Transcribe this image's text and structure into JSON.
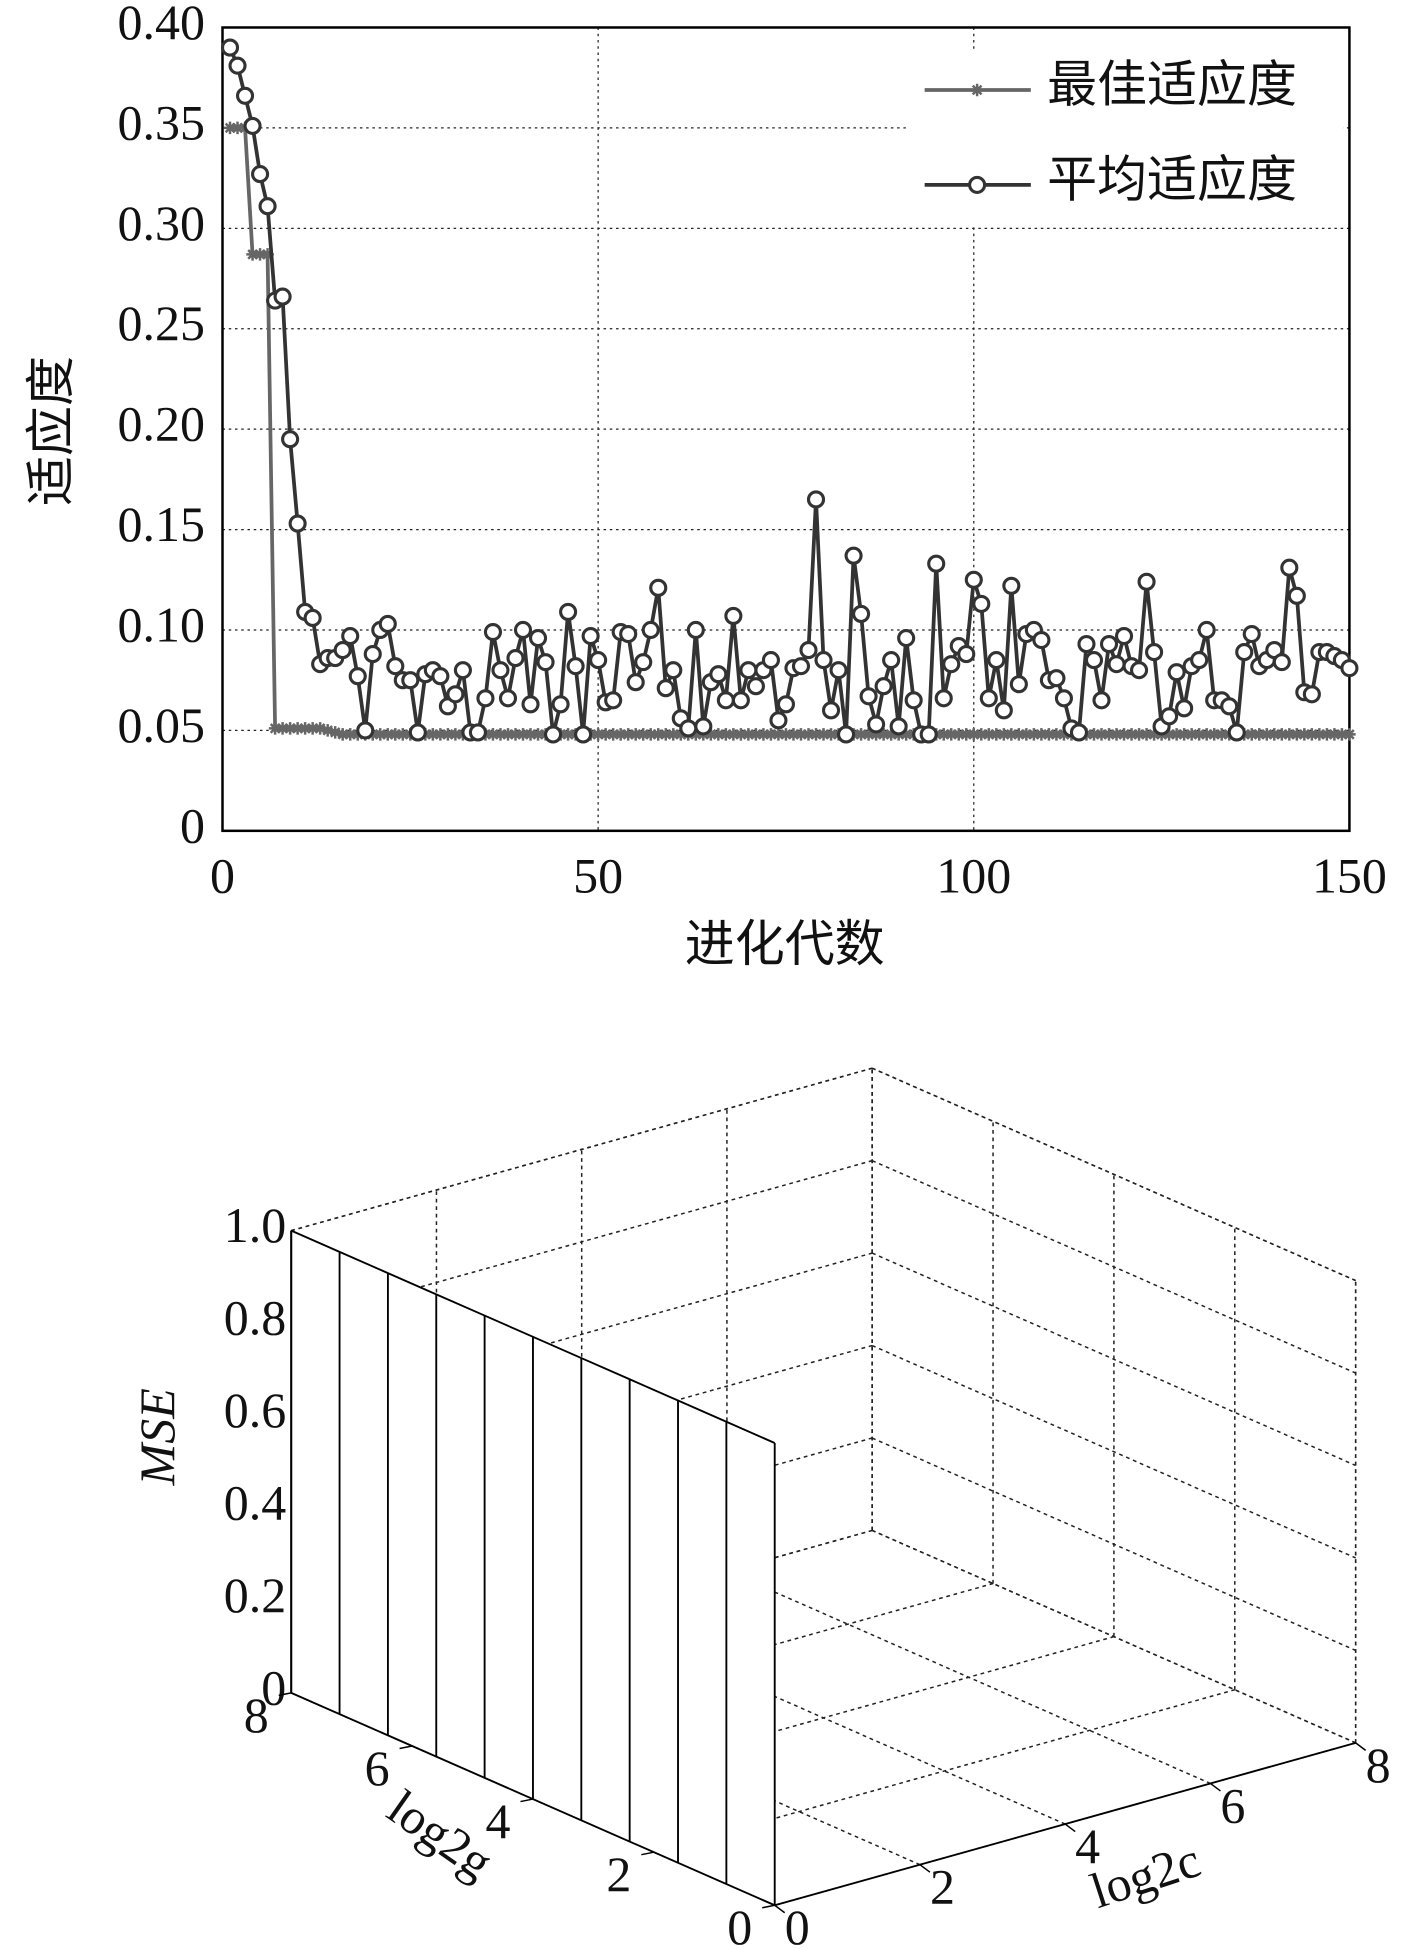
{
  "chart_data": [
    {
      "type": "line",
      "xlabel": "进化代数",
      "ylabel": "适应度",
      "x": [
        1,
        2,
        3,
        4,
        5,
        6,
        7,
        8,
        9,
        10,
        11,
        12,
        13,
        14,
        15,
        16,
        17,
        18,
        19,
        20,
        21,
        22,
        23,
        24,
        25,
        26,
        27,
        28,
        29,
        30,
        31,
        32,
        33,
        34,
        35,
        36,
        37,
        38,
        39,
        40,
        41,
        42,
        43,
        44,
        45,
        46,
        47,
        48,
        49,
        50,
        51,
        52,
        53,
        54,
        55,
        56,
        57,
        58,
        59,
        60,
        61,
        62,
        63,
        64,
        65,
        66,
        67,
        68,
        69,
        70,
        71,
        72,
        73,
        74,
        75,
        76,
        77,
        78,
        79,
        80,
        81,
        82,
        83,
        84,
        85,
        86,
        87,
        88,
        89,
        90,
        91,
        92,
        93,
        94,
        95,
        96,
        97,
        98,
        99,
        100,
        101,
        102,
        103,
        104,
        105,
        106,
        107,
        108,
        109,
        110,
        111,
        112,
        113,
        114,
        115,
        116,
        117,
        118,
        119,
        120,
        121,
        122,
        123,
        124,
        125,
        126,
        127,
        128,
        129,
        130,
        131,
        132,
        133,
        134,
        135,
        136,
        137,
        138,
        139,
        140,
        141,
        142,
        143,
        144,
        145,
        146,
        147,
        148,
        149,
        150
      ],
      "series": [
        {
          "name": "最佳适应度",
          "color": "#666666",
          "marker": "star",
          "values": [
            0.35,
            0.35,
            0.35,
            0.287,
            0.287,
            0.287,
            0.051,
            0.051,
            0.051,
            0.051,
            0.051,
            0.051,
            0.051,
            0.05,
            0.049,
            0.048,
            0.048,
            0.048,
            0.048,
            0.048,
            0.048,
            0.048,
            0.048,
            0.048,
            0.048,
            0.048,
            0.048,
            0.048,
            0.048,
            0.048,
            0.048,
            0.048,
            0.048,
            0.048,
            0.048,
            0.048,
            0.048,
            0.048,
            0.048,
            0.048,
            0.048,
            0.048,
            0.048,
            0.048,
            0.048,
            0.048,
            0.048,
            0.048,
            0.048,
            0.048,
            0.048,
            0.048,
            0.048,
            0.048,
            0.048,
            0.048,
            0.048,
            0.048,
            0.048,
            0.048,
            0.048,
            0.048,
            0.048,
            0.048,
            0.048,
            0.048,
            0.048,
            0.048,
            0.048,
            0.048,
            0.048,
            0.048,
            0.048,
            0.048,
            0.048,
            0.048,
            0.048,
            0.048,
            0.048,
            0.048,
            0.048,
            0.048,
            0.048,
            0.048,
            0.048,
            0.048,
            0.048,
            0.048,
            0.048,
            0.048,
            0.048,
            0.048,
            0.048,
            0.048,
            0.048,
            0.048,
            0.048,
            0.048,
            0.048,
            0.048,
            0.048,
            0.048,
            0.048,
            0.048,
            0.048,
            0.048,
            0.048,
            0.048,
            0.048,
            0.048,
            0.048,
            0.048,
            0.048,
            0.048,
            0.048,
            0.048,
            0.048,
            0.048,
            0.048,
            0.048,
            0.048,
            0.048,
            0.048,
            0.048,
            0.048,
            0.048,
            0.048,
            0.048,
            0.048,
            0.048,
            0.048,
            0.048,
            0.048,
            0.048,
            0.048,
            0.048,
            0.048,
            0.048,
            0.048,
            0.048,
            0.048,
            0.048,
            0.048,
            0.048,
            0.048,
            0.048,
            0.048,
            0.048,
            0.048,
            0.048
          ]
        },
        {
          "name": "平均适应度",
          "color": "#333333",
          "marker": "circle",
          "values": [
            0.39,
            0.381,
            0.366,
            0.351,
            0.327,
            0.311,
            0.264,
            0.266,
            0.195,
            0.153,
            0.109,
            0.106,
            0.083,
            0.086,
            0.086,
            0.09,
            0.097,
            0.077,
            0.05,
            0.088,
            0.1,
            0.103,
            0.082,
            0.075,
            0.075,
            0.049,
            0.078,
            0.08,
            0.077,
            0.062,
            0.068,
            0.08,
            0.049,
            0.049,
            0.066,
            0.099,
            0.08,
            0.066,
            0.086,
            0.1,
            0.063,
            0.096,
            0.084,
            0.048,
            0.063,
            0.109,
            0.082,
            0.048,
            0.097,
            0.085,
            0.064,
            0.065,
            0.099,
            0.098,
            0.074,
            0.084,
            0.1,
            0.121,
            0.071,
            0.08,
            0.056,
            0.051,
            0.1,
            0.052,
            0.074,
            0.078,
            0.065,
            0.107,
            0.065,
            0.08,
            0.072,
            0.08,
            0.085,
            0.055,
            0.063,
            0.081,
            0.082,
            0.09,
            0.165,
            0.085,
            0.06,
            0.08,
            0.048,
            0.137,
            0.108,
            0.067,
            0.053,
            0.072,
            0.085,
            0.052,
            0.096,
            0.065,
            0.048,
            0.048,
            0.133,
            0.066,
            0.083,
            0.092,
            0.088,
            0.125,
            0.113,
            0.066,
            0.085,
            0.06,
            0.122,
            0.073,
            0.098,
            0.1,
            0.095,
            0.075,
            0.076,
            0.066,
            0.051,
            0.049,
            0.093,
            0.085,
            0.065,
            0.093,
            0.083,
            0.097,
            0.082,
            0.08,
            0.124,
            0.089,
            0.052,
            0.057,
            0.079,
            0.061,
            0.082,
            0.085,
            0.1,
            0.065,
            0.065,
            0.062,
            0.049,
            0.089,
            0.098,
            0.082,
            0.085,
            0.09,
            0.084,
            0.131,
            0.117,
            0.069,
            0.068,
            0.089,
            0.089,
            0.087,
            0.085,
            0.081
          ]
        }
      ],
      "xlim": [
        0,
        150
      ],
      "xticks": [
        0,
        50,
        100,
        150
      ],
      "ylim": [
        0,
        0.4
      ],
      "yticks": [
        0,
        0.05,
        {
          "value": 0.1,
          "label": "0.10"
        },
        0.15,
        {
          "value": 0.2,
          "label": "0.20"
        },
        0.25,
        {
          "value": 0.3,
          "label": "0.30"
        },
        0.35,
        {
          "value": 0.4,
          "label": "0.40"
        }
      ],
      "grid": true,
      "legend": "upper right"
    },
    {
      "type": "surface3d",
      "xlabel": "log2c",
      "ylabel": "log2g",
      "zlabel": "MSE",
      "xlim": [
        0,
        8
      ],
      "xticks": [
        0,
        2,
        4,
        6,
        8
      ],
      "ylim": [
        0,
        8
      ],
      "yticks": [
        0,
        2,
        4,
        6,
        8
      ],
      "zlim": [
        0,
        1
      ],
      "zticks": [
        0,
        0.2,
        0.4,
        0.6,
        0.8,
        {
          "value": 1,
          "label": "1.0"
        }
      ],
      "x": [
        0
      ],
      "y": [
        8,
        7.2,
        6.4,
        5.6,
        4.8,
        4,
        3.2,
        2.4,
        1.6,
        0.8,
        0
      ],
      "z": [
        [
          1,
          1,
          1,
          1,
          1,
          1,
          1,
          1,
          1,
          1,
          1
        ]
      ],
      "grid": true
    }
  ]
}
